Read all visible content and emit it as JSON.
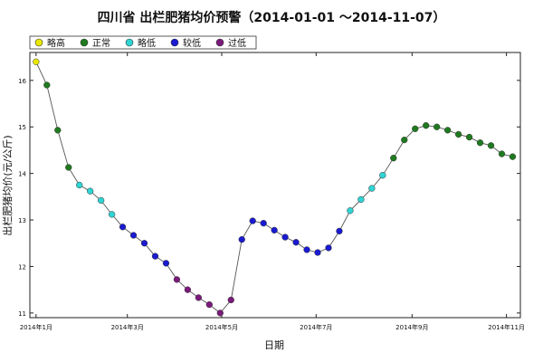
{
  "chart_data": {
    "type": "line",
    "title": "四川省 出栏肥猪均价预警（2014-01-01 ～2014-11-07）",
    "xlabel": "日期",
    "ylabel": "出栏肥猪均价(元/公斤)",
    "ylim": [
      10.9,
      16.6
    ],
    "yticks": [
      11,
      12,
      13,
      14,
      15,
      16
    ],
    "xticks": [
      {
        "date": "2014-01-01",
        "label": "2014年1月"
      },
      {
        "date": "2014-03-01",
        "label": "2014年3月"
      },
      {
        "date": "2014-05-01",
        "label": "2014年5月"
      },
      {
        "date": "2014-07-01",
        "label": "2014年7月"
      },
      {
        "date": "2014-09-01",
        "label": "2014年9月"
      },
      {
        "date": "2014-11-01",
        "label": "2014年11月"
      }
    ],
    "xlim": [
      "2013-12-28",
      "2014-11-10"
    ],
    "grid": false,
    "legend": {
      "placement": "top-left",
      "items": [
        {
          "label": "略高",
          "color": "#e8e800"
        },
        {
          "label": "正常",
          "color": "#1f7a1f"
        },
        {
          "label": "略低",
          "color": "#2fd4d4"
        },
        {
          "label": "较低",
          "color": "#1a1ad0"
        },
        {
          "label": "过低",
          "color": "#7a1a7a"
        }
      ]
    },
    "series": [
      {
        "points": [
          {
            "x": "2014-01-01",
            "y": 16.4,
            "level": "略高"
          },
          {
            "x": "2014-01-08",
            "y": 15.9,
            "level": "正常"
          },
          {
            "x": "2014-01-15",
            "y": 14.93,
            "level": "正常"
          },
          {
            "x": "2014-01-22",
            "y": 14.13,
            "level": "正常"
          },
          {
            "x": "2014-01-29",
            "y": 13.75,
            "level": "略低"
          },
          {
            "x": "2014-02-05",
            "y": 13.62,
            "level": "略低"
          },
          {
            "x": "2014-02-12",
            "y": 13.42,
            "level": "略低"
          },
          {
            "x": "2014-02-19",
            "y": 13.12,
            "level": "略低"
          },
          {
            "x": "2014-02-26",
            "y": 12.85,
            "level": "较低"
          },
          {
            "x": "2014-03-05",
            "y": 12.67,
            "level": "较低"
          },
          {
            "x": "2014-03-12",
            "y": 12.5,
            "level": "较低"
          },
          {
            "x": "2014-03-19",
            "y": 12.22,
            "level": "较低"
          },
          {
            "x": "2014-03-26",
            "y": 12.07,
            "level": "较低"
          },
          {
            "x": "2014-04-02",
            "y": 11.72,
            "level": "过低"
          },
          {
            "x": "2014-04-09",
            "y": 11.5,
            "level": "过低"
          },
          {
            "x": "2014-04-16",
            "y": 11.33,
            "level": "过低"
          },
          {
            "x": "2014-04-23",
            "y": 11.18,
            "level": "过低"
          },
          {
            "x": "2014-04-30",
            "y": 11.0,
            "level": "过低"
          },
          {
            "x": "2014-05-07",
            "y": 11.28,
            "level": "过低"
          },
          {
            "x": "2014-05-14",
            "y": 12.58,
            "level": "较低"
          },
          {
            "x": "2014-05-21",
            "y": 12.98,
            "level": "较低"
          },
          {
            "x": "2014-05-28",
            "y": 12.93,
            "level": "较低"
          },
          {
            "x": "2014-06-04",
            "y": 12.78,
            "level": "较低"
          },
          {
            "x": "2014-06-11",
            "y": 12.63,
            "level": "较低"
          },
          {
            "x": "2014-06-18",
            "y": 12.52,
            "level": "较低"
          },
          {
            "x": "2014-06-25",
            "y": 12.36,
            "level": "较低"
          },
          {
            "x": "2014-07-02",
            "y": 12.3,
            "level": "较低"
          },
          {
            "x": "2014-07-09",
            "y": 12.4,
            "level": "较低"
          },
          {
            "x": "2014-07-16",
            "y": 12.76,
            "level": "较低"
          },
          {
            "x": "2014-07-23",
            "y": 13.2,
            "level": "略低"
          },
          {
            "x": "2014-07-30",
            "y": 13.44,
            "level": "略低"
          },
          {
            "x": "2014-08-06",
            "y": 13.68,
            "level": "略低"
          },
          {
            "x": "2014-08-13",
            "y": 13.96,
            "level": "略低"
          },
          {
            "x": "2014-08-20",
            "y": 14.33,
            "level": "正常"
          },
          {
            "x": "2014-08-27",
            "y": 14.72,
            "level": "正常"
          },
          {
            "x": "2014-09-03",
            "y": 14.96,
            "level": "正常"
          },
          {
            "x": "2014-09-10",
            "y": 15.03,
            "level": "正常"
          },
          {
            "x": "2014-09-17",
            "y": 15.0,
            "level": "正常"
          },
          {
            "x": "2014-09-24",
            "y": 14.93,
            "level": "正常"
          },
          {
            "x": "2014-10-01",
            "y": 14.84,
            "level": "正常"
          },
          {
            "x": "2014-10-08",
            "y": 14.78,
            "level": "正常"
          },
          {
            "x": "2014-10-15",
            "y": 14.66,
            "level": "正常"
          },
          {
            "x": "2014-10-22",
            "y": 14.6,
            "level": "正常"
          },
          {
            "x": "2014-10-29",
            "y": 14.42,
            "level": "正常"
          },
          {
            "x": "2014-11-05",
            "y": 14.36,
            "level": "正常"
          }
        ]
      }
    ]
  }
}
